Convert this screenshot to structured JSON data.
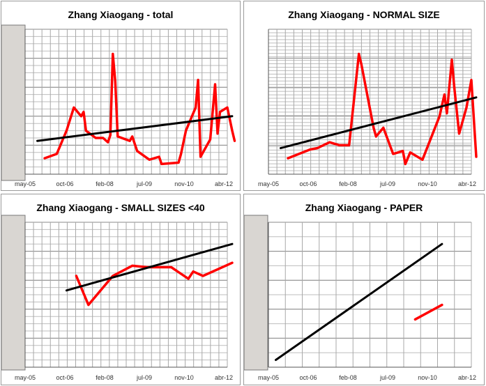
{
  "chart_data": [
    {
      "type": "line",
      "title": "Zhang Xiaogang - total",
      "x_tick_labels": [
        "may-05",
        "oct-06",
        "feb-08",
        "jul-09",
        "nov-10",
        "abr-12"
      ],
      "xlim": [
        "2005-05",
        "2012-04"
      ],
      "ylim": [
        0,
        10
      ],
      "grid": true,
      "legend": "none",
      "series": [
        {
          "kind": "data",
          "color": "#ff0000",
          "points": [
            [
              "2006-01",
              1.1
            ],
            [
              "2006-06",
              1.4
            ],
            [
              "2006-10",
              3.0
            ],
            [
              "2007-01",
              4.6
            ],
            [
              "2007-04",
              4.0
            ],
            [
              "2007-05",
              4.3
            ],
            [
              "2007-06",
              3.0
            ],
            [
              "2007-10",
              2.5
            ],
            [
              "2008-01",
              2.5
            ],
            [
              "2008-03",
              2.2
            ],
            [
              "2008-04",
              2.7
            ],
            [
              "2008-05",
              8.3
            ],
            [
              "2008-06",
              6.4
            ],
            [
              "2008-07",
              2.6
            ],
            [
              "2008-12",
              2.3
            ],
            [
              "2009-01",
              2.6
            ],
            [
              "2009-03",
              1.6
            ],
            [
              "2009-08",
              1.0
            ],
            [
              "2009-12",
              1.2
            ],
            [
              "2010-01",
              0.7
            ],
            [
              "2010-08",
              0.8
            ],
            [
              "2010-09",
              1.4
            ],
            [
              "2010-11",
              3.0
            ],
            [
              "2011-03",
              4.6
            ],
            [
              "2011-04",
              6.5
            ],
            [
              "2011-05",
              1.2
            ],
            [
              "2011-09",
              2.4
            ],
            [
              "2011-11",
              6.2
            ],
            [
              "2011-12",
              2.8
            ],
            [
              "2012-01",
              4.3
            ],
            [
              "2012-04",
              4.6
            ],
            [
              "2012-06",
              3.0
            ],
            [
              "2012-07",
              2.3
            ]
          ]
        },
        {
          "kind": "trend",
          "color": "#000000",
          "points": [
            [
              "2005-10",
              2.3
            ],
            [
              "2012-06",
              4.0
            ]
          ]
        }
      ]
    },
    {
      "type": "line",
      "title": "Zhang Xiaogang - NORMAL SIZE",
      "x_tick_labels": [
        "may-05",
        "oct-06",
        "feb-08",
        "jul-09",
        "nov-10",
        "abr-12"
      ],
      "xlim": [
        "2005-05",
        "2012-04"
      ],
      "ylim": [
        0,
        10
      ],
      "grid": true,
      "legend": "none",
      "series": [
        {
          "kind": "data",
          "color": "#ff0000",
          "points": [
            [
              "2006-01",
              1.1
            ],
            [
              "2006-10",
              1.7
            ],
            [
              "2007-01",
              1.8
            ],
            [
              "2007-06",
              2.2
            ],
            [
              "2007-10",
              2.0
            ],
            [
              "2008-02",
              2.0
            ],
            [
              "2008-06",
              8.3
            ],
            [
              "2008-07",
              7.6
            ],
            [
              "2008-12",
              3.2
            ],
            [
              "2009-01",
              2.6
            ],
            [
              "2009-04",
              3.2
            ],
            [
              "2009-08",
              1.4
            ],
            [
              "2009-12",
              1.6
            ],
            [
              "2010-01",
              0.7
            ],
            [
              "2010-03",
              1.5
            ],
            [
              "2010-08",
              1.0
            ],
            [
              "2011-03",
              4.0
            ],
            [
              "2011-05",
              5.5
            ],
            [
              "2011-06",
              4.2
            ],
            [
              "2011-08",
              7.9
            ],
            [
              "2011-09",
              6.0
            ],
            [
              "2011-11",
              2.8
            ],
            [
              "2012-02",
              4.6
            ],
            [
              "2012-04",
              6.5
            ],
            [
              "2012-06",
              1.2
            ]
          ]
        },
        {
          "kind": "trend",
          "color": "#000000",
          "points": [
            [
              "2005-10",
              1.8
            ],
            [
              "2012-06",
              5.3
            ]
          ]
        }
      ]
    },
    {
      "type": "line",
      "title": "Zhang Xiaogang - SMALL SIZES <40",
      "x_tick_labels": [
        "may-05",
        "oct-06",
        "feb-08",
        "jul-09",
        "nov-10",
        "abr-12"
      ],
      "xlim": [
        "2005-05",
        "2012-04"
      ],
      "ylim": [
        0,
        10
      ],
      "grid": true,
      "legend": "none",
      "series": [
        {
          "kind": "data",
          "color": "#ff0000",
          "points": [
            [
              "2007-02",
              6.3
            ],
            [
              "2007-07",
              4.3
            ],
            [
              "2008-05",
              6.3
            ],
            [
              "2009-01",
              7.0
            ],
            [
              "2009-07",
              6.9
            ],
            [
              "2010-05",
              6.9
            ],
            [
              "2010-12",
              6.1
            ],
            [
              "2011-02",
              6.6
            ],
            [
              "2011-06",
              6.3
            ],
            [
              "2012-06",
              7.2
            ]
          ]
        },
        {
          "kind": "trend",
          "color": "#000000",
          "points": [
            [
              "2006-10",
              5.3
            ],
            [
              "2012-06",
              8.5
            ]
          ]
        }
      ]
    },
    {
      "type": "line",
      "title": "Zhang Xiaogang - PAPER",
      "x_tick_labels": [
        "may-05",
        "oct-06",
        "feb-08",
        "jul-09",
        "nov-10",
        "abr-12"
      ],
      "xlim": [
        "2005-05",
        "2012-04"
      ],
      "ylim": [
        0,
        10
      ],
      "grid": true,
      "legend": "none",
      "series": [
        {
          "kind": "data",
          "color": "#ff0000",
          "points": [
            [
              "2010-05",
              3.3
            ],
            [
              "2011-04",
              4.3
            ]
          ]
        },
        {
          "kind": "trend",
          "color": "#000000",
          "points": [
            [
              "2005-08",
              0.5
            ],
            [
              "2011-04",
              8.5
            ]
          ]
        }
      ]
    }
  ]
}
